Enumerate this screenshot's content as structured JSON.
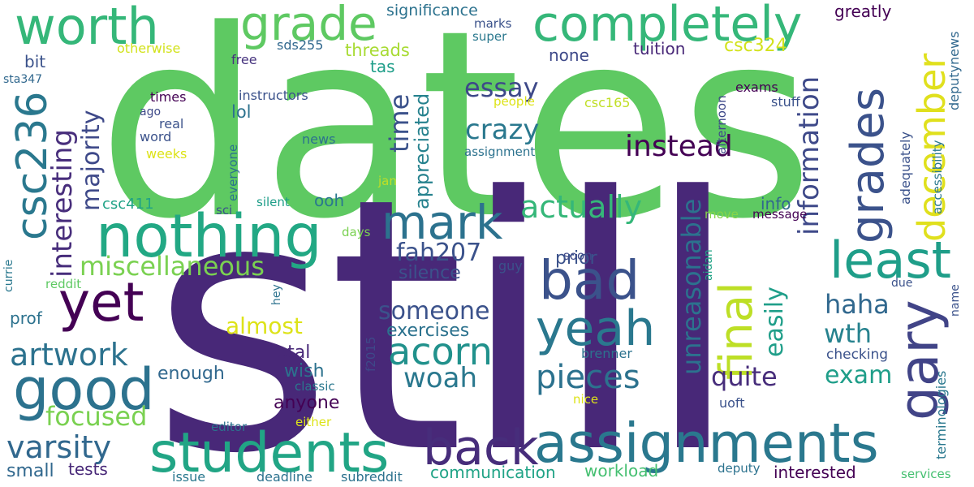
{
  "words": [
    {
      "text": "dates",
      "color": "#5ec962"
    },
    {
      "text": "still",
      "color": "#482878"
    },
    {
      "text": "students",
      "color": "#21a585"
    },
    {
      "text": "assignments",
      "color": "#2a788e"
    },
    {
      "text": "nothing",
      "color": "#22a884"
    },
    {
      "text": "completely",
      "color": "#35b779"
    },
    {
      "text": "worth",
      "color": "#35b779"
    },
    {
      "text": "grade",
      "color": "#5ec962"
    },
    {
      "text": "yet",
      "color": "#440154"
    },
    {
      "text": "good",
      "color": "#2c728e"
    },
    {
      "text": "bad",
      "color": "#3b528b"
    },
    {
      "text": "back",
      "color": "#472d7b"
    },
    {
      "text": "yeah",
      "color": "#2a788e"
    },
    {
      "text": "mark",
      "color": "#2c728e"
    },
    {
      "text": "gary",
      "color": "#414487"
    },
    {
      "text": "grades",
      "color": "#3b528b"
    },
    {
      "text": "december",
      "color": "#e0e01d"
    },
    {
      "text": "least",
      "color": "#1f9e89"
    },
    {
      "text": "csc236",
      "color": "#2a788e"
    },
    {
      "text": "final",
      "color": "#bddf26"
    },
    {
      "text": "acorn",
      "color": "#21918c"
    },
    {
      "text": "pieces",
      "color": "#2c728e"
    },
    {
      "text": "varsity",
      "color": "#31688e"
    },
    {
      "text": "artwork",
      "color": "#2c728e"
    },
    {
      "text": "focused",
      "color": "#7ad151"
    },
    {
      "text": "woah",
      "color": "#2a788e"
    },
    {
      "text": "instead",
      "color": "#440154"
    },
    {
      "text": "actually",
      "color": "#35b779"
    },
    {
      "text": "crazy",
      "color": "#2a788e"
    },
    {
      "text": "essay",
      "color": "#3e4989"
    },
    {
      "text": "someone",
      "color": "#3b528b"
    },
    {
      "text": "fah207",
      "color": "#3b528b"
    },
    {
      "text": "miscellaneous",
      "color": "#7ad151"
    },
    {
      "text": "almost",
      "color": "#dde318"
    },
    {
      "text": "interesting",
      "color": "#472d7b"
    },
    {
      "text": "majority",
      "color": "#3e4989"
    },
    {
      "text": "information",
      "color": "#3e4989"
    },
    {
      "text": "unreasonable",
      "color": "#2c728e"
    },
    {
      "text": "haha",
      "color": "#31688e"
    },
    {
      "text": "wth",
      "color": "#26828e"
    },
    {
      "text": "quite",
      "color": "#472d7b"
    },
    {
      "text": "exam",
      "color": "#1f9e89"
    },
    {
      "text": "easily",
      "color": "#1f9e89"
    },
    {
      "text": "time",
      "color": "#3b528b"
    },
    {
      "text": "appreciated",
      "color": "#26828e"
    },
    {
      "text": "exercises",
      "color": "#2c728e"
    },
    {
      "text": "silence",
      "color": "#3b528b"
    },
    {
      "text": "prior",
      "color": "#3b528b"
    },
    {
      "text": "total",
      "color": "#482878"
    },
    {
      "text": "wish",
      "color": "#2c728e"
    },
    {
      "text": "anyone",
      "color": "#440154"
    },
    {
      "text": "enough",
      "color": "#31688e"
    },
    {
      "text": "tests",
      "color": "#482878"
    },
    {
      "text": "small",
      "color": "#31688e"
    },
    {
      "text": "workload",
      "color": "#44bf70"
    },
    {
      "text": "communication",
      "color": "#20a386"
    },
    {
      "text": "interested",
      "color": "#440154"
    },
    {
      "text": "tuition",
      "color": "#482878"
    },
    {
      "text": "csc324",
      "color": "#d2e21b"
    },
    {
      "text": "threads",
      "color": "#a8db34"
    },
    {
      "text": "tas",
      "color": "#1f9e89"
    },
    {
      "text": "none",
      "color": "#3e4989"
    },
    {
      "text": "significance",
      "color": "#2c728e"
    },
    {
      "text": "marks",
      "color": "#3b528b"
    },
    {
      "text": "super",
      "color": "#2a788e"
    },
    {
      "text": "greatly",
      "color": "#440154"
    },
    {
      "text": "sds255",
      "color": "#31688e"
    },
    {
      "text": "free",
      "color": "#46337e"
    },
    {
      "text": "otherwise",
      "color": "#d2e21b"
    },
    {
      "text": "bit",
      "color": "#3b528b"
    },
    {
      "text": "sta347",
      "color": "#31688e"
    },
    {
      "text": "instructors",
      "color": "#3b528b"
    },
    {
      "text": "times",
      "color": "#440154"
    },
    {
      "text": "lol",
      "color": "#2c728e"
    },
    {
      "text": "ago",
      "color": "#3e4989"
    },
    {
      "text": "real",
      "color": "#3b528b"
    },
    {
      "text": "word",
      "color": "#3b528b"
    },
    {
      "text": "weeks",
      "color": "#dde318"
    },
    {
      "text": "news",
      "color": "#2c728e"
    },
    {
      "text": "people",
      "color": "#dde318"
    },
    {
      "text": "csc165",
      "color": "#c0df25"
    },
    {
      "text": "assignment",
      "color": "#2c728e"
    },
    {
      "text": "exams",
      "color": "#440154"
    },
    {
      "text": "stuff",
      "color": "#3b528b"
    },
    {
      "text": "afternoon",
      "color": "#3e4989"
    },
    {
      "text": "csc411",
      "color": "#20a386"
    },
    {
      "text": "silent",
      "color": "#1f9e89"
    },
    {
      "text": "ooh",
      "color": "#2a788e"
    },
    {
      "text": "sci",
      "color": "#3b528b"
    },
    {
      "text": "jan",
      "color": "#c0df25"
    },
    {
      "text": "days",
      "color": "#7ad151"
    },
    {
      "text": "move",
      "color": "#86d549"
    },
    {
      "text": "message",
      "color": "#440154"
    },
    {
      "text": "info",
      "color": "#31688e"
    },
    {
      "text": "guy",
      "color": "#3b528b"
    },
    {
      "text": "soon",
      "color": "#3e4989"
    },
    {
      "text": "reddit",
      "color": "#5ec962"
    },
    {
      "text": "currie",
      "color": "#2a788e"
    },
    {
      "text": "prof",
      "color": "#2c728e"
    },
    {
      "text": "hey",
      "color": "#2c728e"
    },
    {
      "text": "f2015",
      "color": "#3e4989"
    },
    {
      "text": "classic",
      "color": "#2a788e"
    },
    {
      "text": "nice",
      "color": "#dde318"
    },
    {
      "text": "brenner",
      "color": "#2c728e"
    },
    {
      "text": "checking",
      "color": "#3b528b"
    },
    {
      "text": "due",
      "color": "#3b528b"
    },
    {
      "text": "uoft",
      "color": "#3b528b"
    },
    {
      "text": "editor",
      "color": "#2c728e"
    },
    {
      "text": "either",
      "color": "#dde318"
    },
    {
      "text": "issue",
      "color": "#2a788e"
    },
    {
      "text": "deadline",
      "color": "#2c728e"
    },
    {
      "text": "subreddit",
      "color": "#2c728e"
    },
    {
      "text": "deputy",
      "color": "#2c728e"
    },
    {
      "text": "services",
      "color": "#44bf70"
    },
    {
      "text": "everyone",
      "color": "#2c728e"
    },
    {
      "text": "adequately",
      "color": "#3b528b"
    },
    {
      "text": "accessibility",
      "color": "#2a788e"
    },
    {
      "text": "deputynews",
      "color": "#31688e"
    },
    {
      "text": "terminologies",
      "color": "#2a788e"
    },
    {
      "text": "name",
      "color": "#3b528b"
    },
    {
      "text": "aidan",
      "color": "#20a386"
    }
  ]
}
